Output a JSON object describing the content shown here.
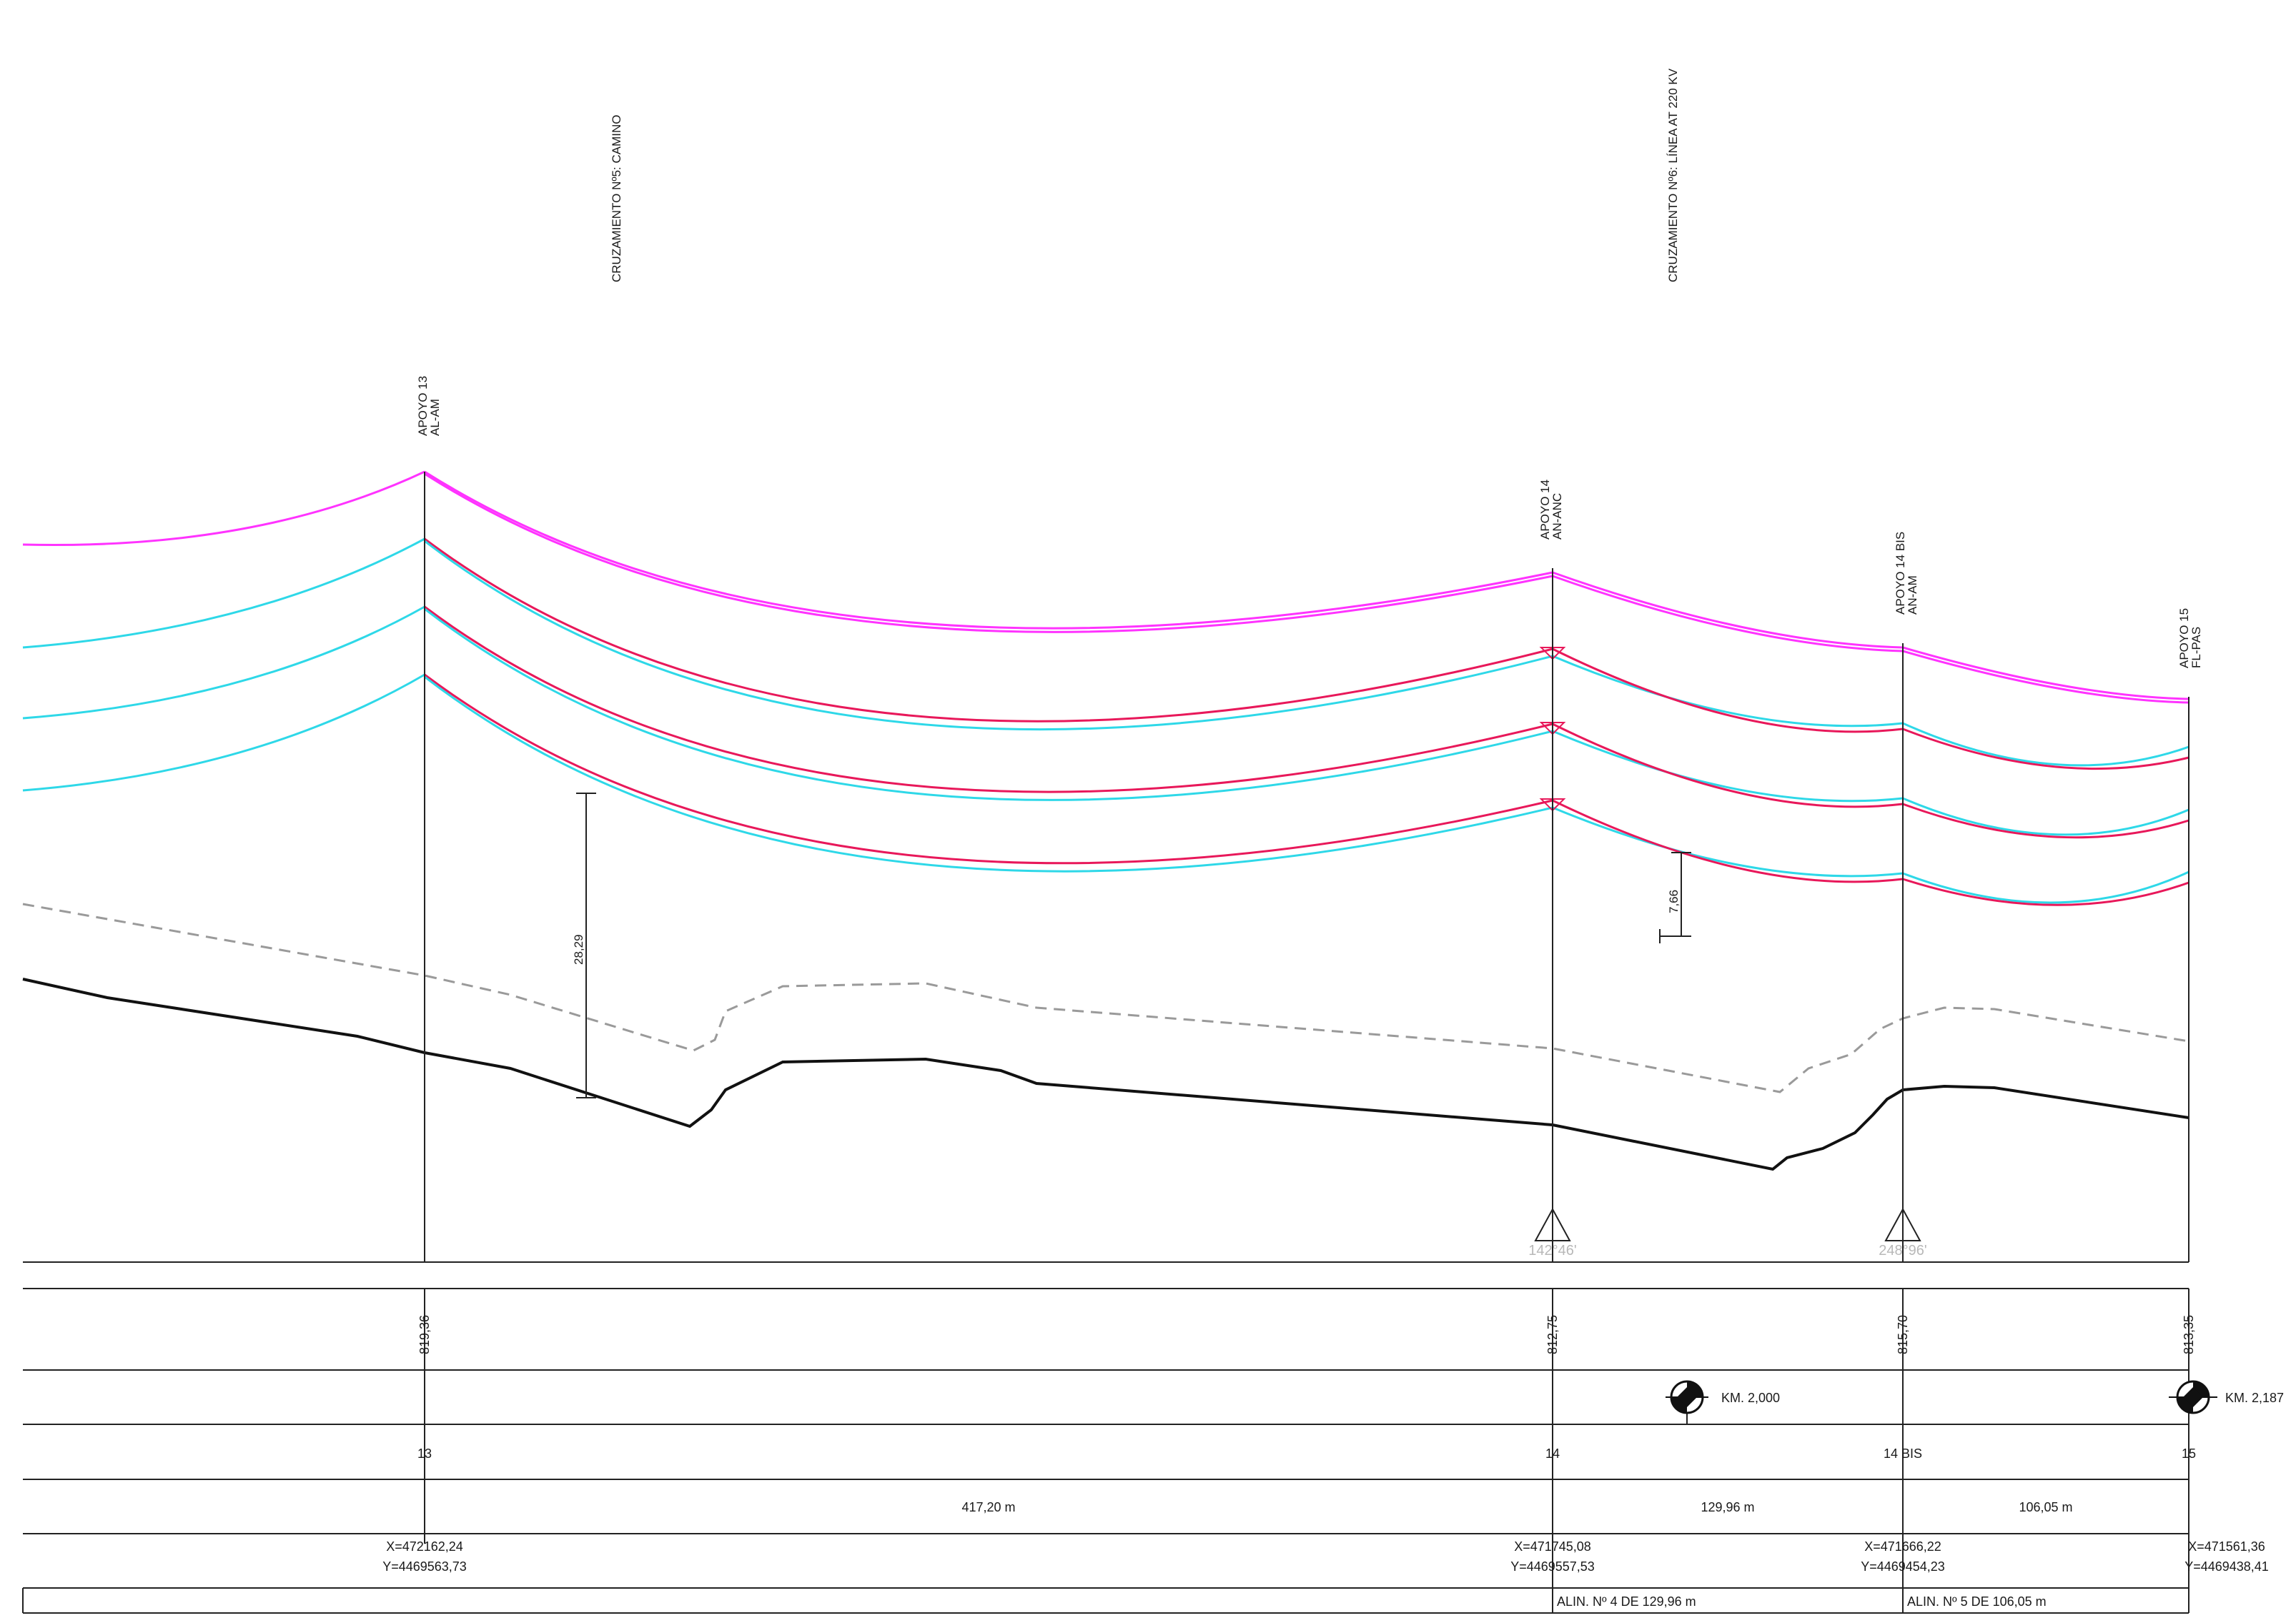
{
  "crossings": [
    {
      "label": "CRUZAMIENTO Nº5: CAMINO"
    },
    {
      "label": "CRUZAMIENTO Nº6: LÍNEA AT 220 KV"
    }
  ],
  "supports": [
    {
      "id": "13",
      "name": "APOYO 13",
      "type": "AL-AM",
      "elevation": "819,36",
      "x": "X=472162,24",
      "y": "Y=4469563,73"
    },
    {
      "id": "14",
      "name": "APOYO 14",
      "type": "AN-ANC",
      "elevation": "812,75",
      "x": "X=471745,08",
      "y": "Y=4469557,53",
      "angle": "142°46'"
    },
    {
      "id": "14 BIS",
      "name": "APOYO 14 BIS",
      "type": "AN-AM",
      "elevation": "815,70",
      "x": "X=471666,22",
      "y": "Y=4469454,23",
      "angle": "248°96'"
    },
    {
      "id": "15",
      "name": "APOYO 15",
      "type": "FL-PAS",
      "elevation": "813,35",
      "x": "X=471561,36",
      "y": "Y=4469438,41"
    }
  ],
  "spans": [
    "417,20 m",
    "129,96 m",
    "106,05 m"
  ],
  "kilometers": [
    "KM. 2,000",
    "KM. 2,187"
  ],
  "clearances": [
    "28,29",
    "7,66"
  ],
  "alignments": [
    "ALIN. Nº 4 DE 129,96 m",
    "ALIN. Nº 5 DE 106,05 m"
  ],
  "colors": {
    "ground_wire": "#ff33ff",
    "conductor_hot": "#e8185a",
    "conductor_cold": "#2ed8e8",
    "terrain": "#111111",
    "safety_line": "#9a9a9a",
    "grid": "#222222"
  },
  "icons": [
    "km-marker-icon"
  ]
}
